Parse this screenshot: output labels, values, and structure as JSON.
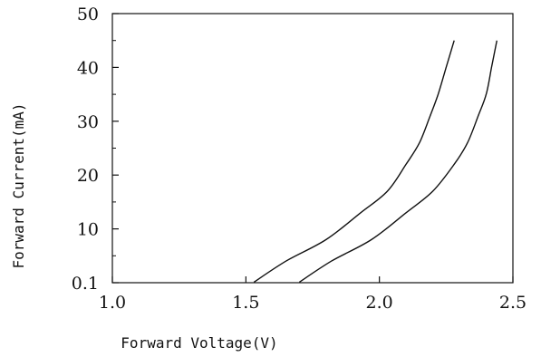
{
  "chart_data": {
    "type": "line",
    "title": "",
    "xlabel": "Forward Voltage(V)",
    "ylabel": "Forward Current(mA)",
    "xlim": [
      1.0,
      2.5
    ],
    "ylim": [
      0,
      50
    ],
    "x_ticks": [
      1.0,
      1.5,
      2.0,
      2.5
    ],
    "x_tick_labels": [
      "1.0",
      "1.5",
      "2.0",
      "2.5"
    ],
    "y_ticks": [
      0.1,
      10,
      20,
      30,
      40,
      50
    ],
    "y_tick_labels": [
      "0.1",
      "10",
      "20",
      "30",
      "40",
      "50"
    ],
    "y_minor_ticks": [
      5,
      15,
      25,
      35,
      45
    ],
    "grid": false,
    "series": [
      {
        "x": [
          1.53,
          1.65,
          1.8,
          1.93,
          2.03,
          2.1,
          2.15,
          2.19,
          2.22,
          2.25,
          2.28
        ],
        "y": [
          0.1,
          4,
          8,
          13,
          17,
          22,
          26,
          31,
          35,
          40,
          45
        ]
      },
      {
        "x": [
          1.7,
          1.82,
          1.97,
          2.1,
          2.2,
          2.28,
          2.33,
          2.37,
          2.4,
          2.42,
          2.44
        ],
        "y": [
          0.1,
          4,
          8,
          13,
          17,
          22,
          26,
          31,
          35,
          40,
          45
        ]
      }
    ]
  }
}
